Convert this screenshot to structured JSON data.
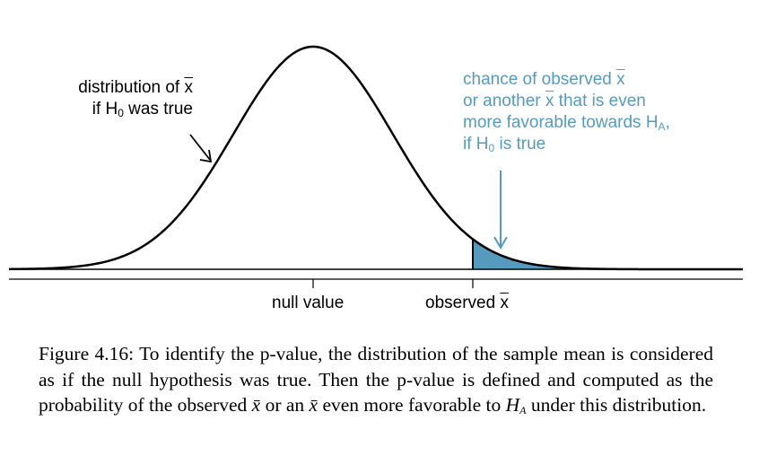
{
  "left_annotation": {
    "line1_text": "distribution of ",
    "line1_symbol": "x",
    "line2_pre": "if H",
    "line2_sub": "0",
    "line2_post": " was true"
  },
  "right_annotation": {
    "line1_text": "chance of observed ",
    "line1_symbol": "x",
    "line2_pre": "or another ",
    "line2_symbol": "x",
    "line2_post": " that is even",
    "line3_pre": "more favorable towards H",
    "line3_sub": "A",
    "line3_post": ",",
    "line4_pre": "if H",
    "line4_sub": "0",
    "line4_post": " is true"
  },
  "axis": {
    "null_label": "null value",
    "observed_label_text": "observed ",
    "observed_label_symbol": "x"
  },
  "caption": {
    "lead": "Figure 4.16: To identify the p-value, the distribution of the sample mean is considered as if the null hypothesis was true. Then the p-value is defined and computed as the probability of the observed ",
    "x1": "x̄",
    "mid": " or an ",
    "x2": "x̄",
    "mid2": " even more favorable to ",
    "ha_base": "H",
    "ha_sub": "A",
    "tail": " under this distribution."
  },
  "colors": {
    "curve": "#000000",
    "shaded_tail": "#569BBD",
    "annotation_blue": "#569BBD"
  }
}
